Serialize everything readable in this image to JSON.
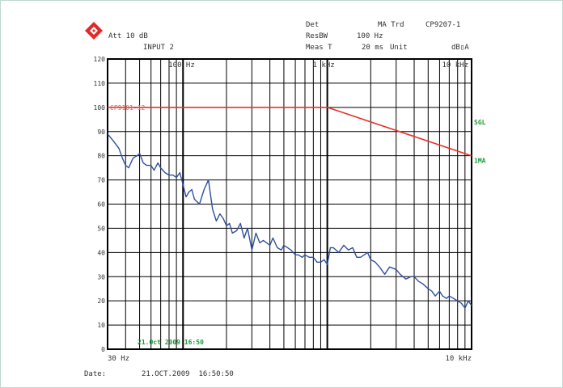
{
  "header": {
    "att": "Att 10 dB",
    "input": "INPUT 2",
    "det_label": "Det",
    "det_value": "MA Trd",
    "id": "CP9207-1",
    "resbw_label": "ResBW",
    "resbw_value": "100 Hz",
    "meas_label": "Meas T",
    "meas_value": "20 ms",
    "unit_label": "Unit",
    "unit_value": "dB▯A"
  },
  "footer": {
    "date_label": "Date:",
    "date_value": "21.OCT.2009  16:50:50"
  },
  "colors": {
    "trace": "#2f4fa0",
    "limit": "#e8312a",
    "annot": "#1a9a3a",
    "limit_label": "#e06050",
    "logo": "#e02a2a"
  },
  "chart_data": {
    "type": "line",
    "x_scale": "log",
    "xlim": [
      30,
      10000
    ],
    "ylim": [
      0,
      120
    ],
    "y_ticks": [
      "0",
      "10",
      "20",
      "30",
      "40",
      "50",
      "60",
      "70",
      "80",
      "90",
      "100",
      "110",
      "120"
    ],
    "x_labels": [
      {
        "value": 30,
        "text": "30 Hz",
        "pos": "bottom"
      },
      {
        "value": 10000,
        "text": "10 kHz",
        "pos": "bottom"
      },
      {
        "value": 100,
        "text": "100 Hz",
        "pos": "top"
      },
      {
        "value": 1000,
        "text": "1 kHz",
        "pos": "top"
      },
      {
        "value": 10000,
        "text": "10 kHz",
        "pos": "top"
      }
    ],
    "side_labels": [
      "SGL",
      "1MA"
    ],
    "limit_label": "CP9101-12",
    "timestamp": "21.Oct 2009 16:50",
    "grid": true,
    "series": [
      {
        "name": "",
        "style": "limit",
        "x": [
          30,
          1000,
          10000
        ],
        "y": [
          100,
          100,
          80
        ]
      },
      {
        "name": "",
        "style": "trace",
        "x": [
          30,
          33,
          36,
          38,
          40,
          42,
          45,
          48,
          50,
          53,
          56,
          60,
          63,
          67,
          70,
          75,
          80,
          85,
          90,
          95,
          100,
          105,
          110,
          115,
          120,
          130,
          140,
          150,
          160,
          170,
          180,
          190,
          200,
          210,
          220,
          235,
          250,
          265,
          280,
          300,
          320,
          340,
          360,
          380,
          400,
          420,
          450,
          480,
          500,
          530,
          560,
          600,
          630,
          670,
          700,
          750,
          800,
          850,
          900,
          950,
          1000,
          1050,
          1100,
          1200,
          1300,
          1400,
          1500,
          1600,
          1700,
          1800,
          1900,
          2000,
          2150,
          2300,
          2500,
          2700,
          3000,
          3200,
          3500,
          3800,
          4000,
          4300,
          4600,
          5000,
          5300,
          5600,
          6000,
          6300,
          6700,
          7000,
          7500,
          8000,
          8500,
          9000,
          9500,
          10000
        ],
        "y": [
          89,
          86,
          83,
          79,
          76,
          75,
          79,
          80,
          81,
          77,
          76,
          76,
          74,
          77,
          75,
          73,
          72,
          72,
          71,
          73,
          68,
          63,
          65,
          66,
          62,
          60,
          66,
          70,
          58,
          53,
          56,
          54,
          51,
          52,
          48,
          49,
          52,
          46,
          50,
          41,
          48,
          44,
          45,
          44,
          43,
          46,
          42,
          41,
          43,
          42,
          41,
          39,
          39,
          38,
          39,
          38,
          38,
          36,
          36,
          37,
          35,
          42,
          42,
          40,
          43,
          41,
          42,
          38,
          38,
          39,
          40,
          37,
          36,
          34,
          31,
          34,
          33,
          31,
          29,
          30,
          30,
          28,
          27,
          25,
          24,
          22,
          24,
          22,
          21,
          22,
          21,
          20,
          19,
          17,
          20,
          18
        ]
      }
    ]
  }
}
